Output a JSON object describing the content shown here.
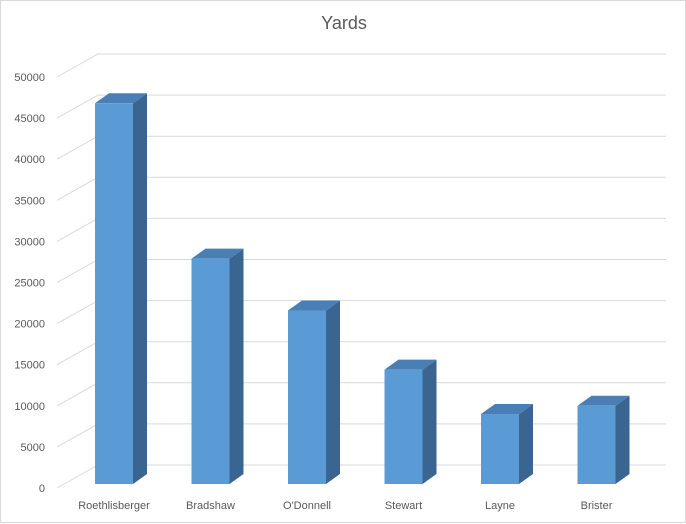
{
  "chart_data": {
    "type": "bar",
    "title": "Yards",
    "categories": [
      "Roethlisberger",
      "Bradshaw",
      "O'Donnell",
      "Stewart",
      "Layne",
      "Brister"
    ],
    "values": [
      46800,
      27900,
      21600,
      14400,
      9000,
      10000
    ],
    "xlabel": "",
    "ylabel": "",
    "ylim": [
      0,
      50000
    ],
    "yticks": [
      "0",
      "5000",
      "10000",
      "15000",
      "20000",
      "25000",
      "30000",
      "35000",
      "40000",
      "45000",
      "50000"
    ],
    "grid": true,
    "legend": "none",
    "style": "3d-column",
    "colors": {
      "bar_front": "#5b9bd5",
      "bar_side": "#3a6590",
      "bar_top": "#4a7fb5",
      "gridline": "#d9d9d9",
      "text": "#595959"
    }
  }
}
